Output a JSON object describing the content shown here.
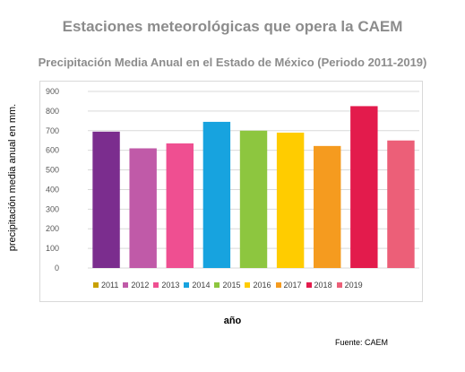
{
  "header": {
    "title": "Estaciones meteorológicas que opera la CAEM"
  },
  "footer": {
    "source": "Fuente: CAEM"
  },
  "chart_data": {
    "type": "bar",
    "title": "Precipitación Media Anual en el Estado de México (Periodo 2011-2019)",
    "xlabel": "año",
    "ylabel": "precipitación media anual en mm.",
    "categories": [
      "2011",
      "2012",
      "2013",
      "2014",
      "2015",
      "2016",
      "2017",
      "2018",
      "2019"
    ],
    "values": [
      695,
      610,
      635,
      745,
      700,
      690,
      622,
      825,
      650
    ],
    "colors": [
      "#7b2d8e",
      "#c05aa8",
      "#ef4f91",
      "#17a3df",
      "#8dc63f",
      "#ffcc00",
      "#f59b1f",
      "#e31b4c",
      "#ec5f78"
    ],
    "legend_colors": [
      "#c8a000",
      "#c05aa8",
      "#ef4f91",
      "#17a3df",
      "#8dc63f",
      "#ffcc00",
      "#f59b1f",
      "#e31b4c",
      "#ec5f78"
    ],
    "ylim": [
      0,
      900
    ],
    "yticks": [
      "0",
      "100",
      "200",
      "300",
      "400",
      "500",
      "600",
      "700",
      "800",
      "900"
    ],
    "grid": true,
    "legend_position": "bottom"
  }
}
